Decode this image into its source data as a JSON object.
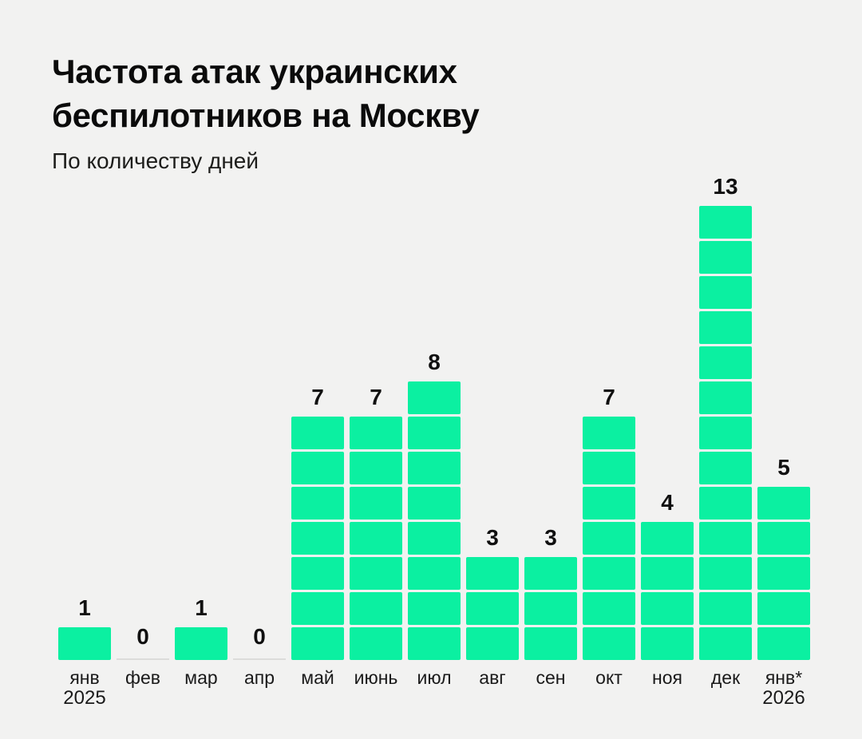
{
  "page": {
    "background": "#f2f2f1"
  },
  "header": {
    "title": "Частота атак украинских беспилотников на Москву",
    "subtitle": "По количеству дней"
  },
  "chart_data": {
    "type": "bar",
    "style": "stacked-unit-blocks",
    "title": "Частота атак украинских беспилотников на Москву",
    "subtitle": "По количеству дней",
    "categories": [
      "янв",
      "фев",
      "мар",
      "апр",
      "май",
      "июнь",
      "июл",
      "авг",
      "сен",
      "окт",
      "ноя",
      "дек",
      "янв*"
    ],
    "values": [
      1,
      0,
      1,
      0,
      7,
      7,
      8,
      3,
      3,
      7,
      4,
      13,
      5
    ],
    "year_markers": [
      {
        "category_index": 0,
        "label": "2025"
      },
      {
        "category_index": 12,
        "label": "2026"
      }
    ],
    "ylim": [
      0,
      13
    ],
    "unit_per_block": 1,
    "value_labels": true,
    "grid": false,
    "legend": false,
    "bar_color": "#0bf0a1",
    "zero_line_color": "#dcdcda",
    "text_color": "#101010"
  }
}
